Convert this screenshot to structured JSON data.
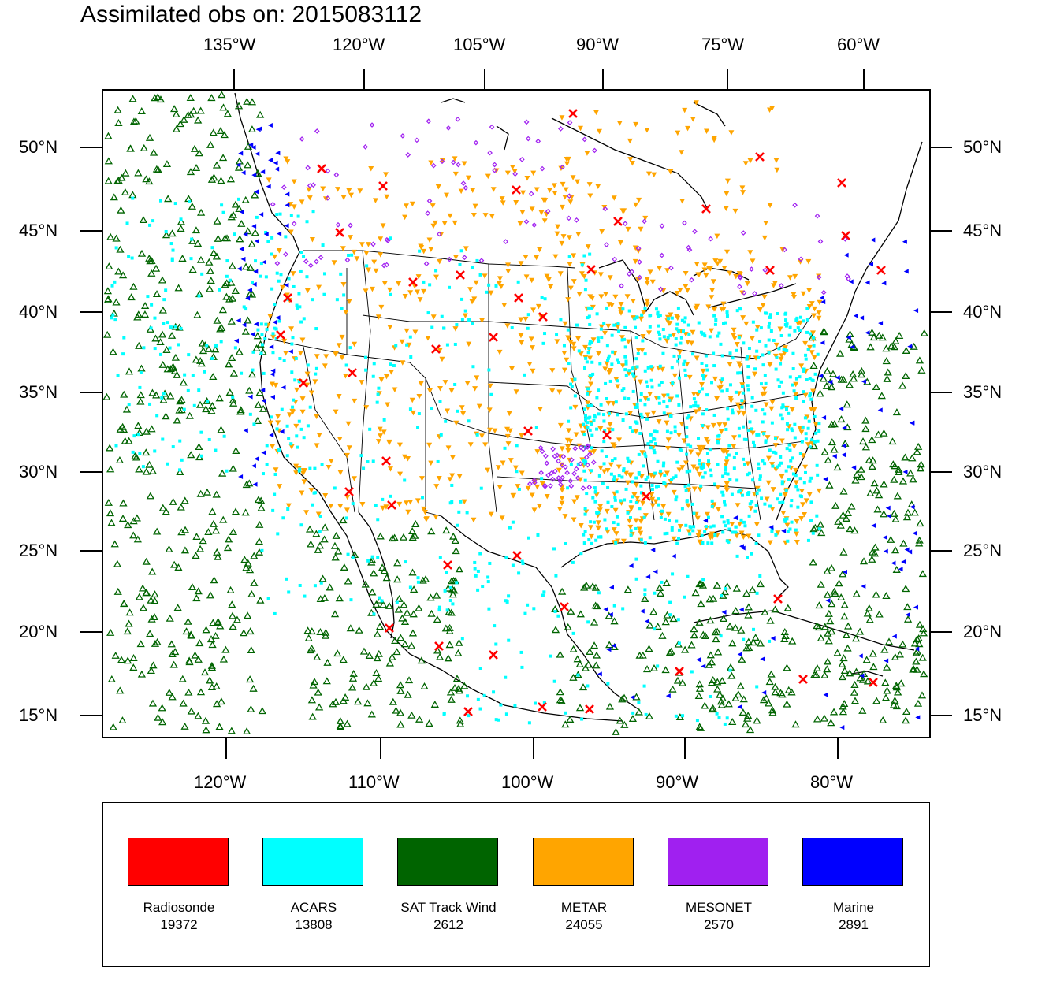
{
  "title": "Assimilated obs on: 2015083112",
  "map": {
    "top_axis_labels": [
      "135°W",
      "120°W",
      "105°W",
      "90°W",
      "75°W",
      "60°W"
    ],
    "bottom_axis_labels": [
      "120°W",
      "110°W",
      "100°W",
      "90°W",
      "80°W"
    ],
    "left_axis_labels": [
      "50°N",
      "45°N",
      "40°N",
      "35°N",
      "30°N",
      "25°N",
      "20°N",
      "15°N"
    ],
    "right_axis_labels": [
      "50°N",
      "45°N",
      "40°N",
      "35°N",
      "30°N",
      "25°N",
      "20°N",
      "15°N"
    ]
  },
  "legend": [
    {
      "name": "Radiosonde",
      "count": "19372",
      "color": "#ff0000",
      "symbol": "x"
    },
    {
      "name": "ACARS",
      "count": "13808",
      "color": "#00ffff",
      "symbol": "square"
    },
    {
      "name": "SAT Track Wind",
      "count": "2612",
      "color": "#006400",
      "symbol": "triangle-up"
    },
    {
      "name": "METAR",
      "count": "24055",
      "color": "#ffa500",
      "symbol": "triangle-down"
    },
    {
      "name": "MESONET",
      "count": "2570",
      "color": "#a020f0",
      "symbol": "diamond"
    },
    {
      "name": "Marine",
      "count": "2891",
      "color": "#0000ff",
      "symbol": "triangle-left"
    }
  ]
}
